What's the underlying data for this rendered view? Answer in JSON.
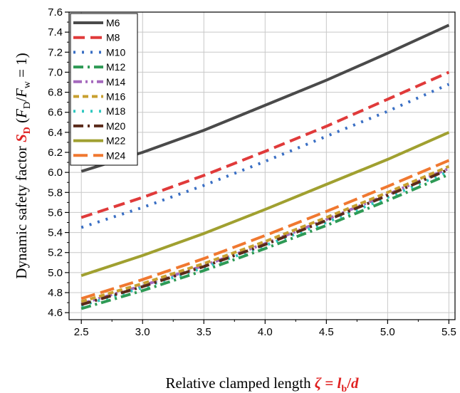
{
  "chart_data": {
    "type": "line",
    "x": [
      2.5,
      3.0,
      3.5,
      4.0,
      4.5,
      5.0,
      5.5
    ],
    "xlim": [
      2.4,
      5.55
    ],
    "ylim": [
      4.53,
      7.6
    ],
    "xticks": [
      "2.5",
      "3.0",
      "3.5",
      "4.0",
      "4.5",
      "5.0",
      "5.5"
    ],
    "yticks": [
      "4.6",
      "4.8",
      "5.0",
      "5.2",
      "5.4",
      "5.6",
      "5.8",
      "6.0",
      "6.2",
      "6.4",
      "6.6",
      "6.8",
      "7.0",
      "7.2",
      "7.4",
      "7.6"
    ],
    "grid": true,
    "legend_position": "top-left",
    "ylabel": {
      "prefix": "Dynamic safety factor ",
      "symbol_S": "S",
      "symbol_sub": "D",
      "paren_open": " (",
      "F1": "F",
      "F1_sub": "D",
      "slash": "/",
      "F2": "F",
      "F2_sub": "w",
      "eq": " = 1)"
    },
    "xlabel": {
      "prefix": "Relative clamped length ",
      "zeta": "ζ",
      "eq": " = ",
      "l": "l",
      "l_sub": "b",
      "slash": "/",
      "d": "d"
    },
    "series": [
      {
        "name": "M6",
        "color": "#4a4a4a",
        "dash": "solid",
        "values": [
          6.01,
          6.2,
          6.42,
          6.67,
          6.92,
          7.19,
          7.47
        ]
      },
      {
        "name": "M8",
        "color": "#e03a3a",
        "dash": "dash",
        "values": [
          5.55,
          5.75,
          5.97,
          6.21,
          6.46,
          6.73,
          7.0
        ]
      },
      {
        "name": "M10",
        "color": "#3a6fc4",
        "dash": "dot",
        "values": [
          5.45,
          5.65,
          5.87,
          6.11,
          6.36,
          6.61,
          6.88
        ]
      },
      {
        "name": "M12",
        "color": "#2e9a55",
        "dash": "dashdot",
        "values": [
          4.64,
          4.82,
          5.02,
          5.24,
          5.47,
          5.72,
          5.98
        ]
      },
      {
        "name": "M14",
        "color": "#a569bd",
        "dash": "dashdotdot",
        "values": [
          4.69,
          4.87,
          5.07,
          5.29,
          5.53,
          5.78,
          6.04
        ]
      },
      {
        "name": "M16",
        "color": "#c8a030",
        "dash": "shortdash",
        "values": [
          4.71,
          4.89,
          5.09,
          5.31,
          5.55,
          5.8,
          6.06
        ]
      },
      {
        "name": "M18",
        "color": "#30c8c0",
        "dash": "dot",
        "values": [
          4.67,
          4.85,
          5.05,
          5.27,
          5.5,
          5.75,
          6.01
        ]
      },
      {
        "name": "M20",
        "color": "#5a2a1a",
        "dash": "dashdot",
        "values": [
          4.68,
          4.86,
          5.06,
          5.28,
          5.52,
          5.77,
          6.03
        ]
      },
      {
        "name": "M22",
        "color": "#a0a030",
        "dash": "solid",
        "values": [
          4.97,
          5.17,
          5.39,
          5.63,
          5.88,
          6.13,
          6.4
        ]
      },
      {
        "name": "M24",
        "color": "#f07830",
        "dash": "longdash",
        "values": [
          4.74,
          4.93,
          5.14,
          5.37,
          5.61,
          5.86,
          6.12
        ]
      }
    ]
  }
}
